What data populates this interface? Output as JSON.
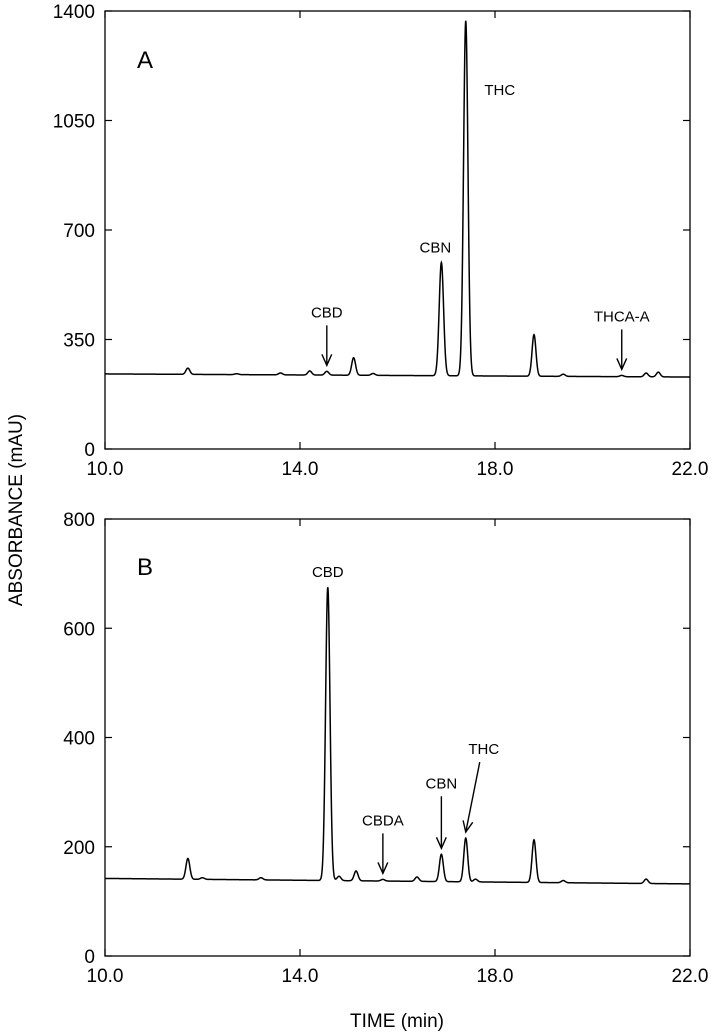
{
  "figure": {
    "ylabel": "ABSORBANCE (mAU)",
    "xlabel": "TIME (min)"
  },
  "chart_data": [
    {
      "type": "line",
      "panel_label": "A",
      "xlim": [
        10.0,
        22.0
      ],
      "ylim": [
        0,
        1400
      ],
      "x_ticks": [
        10.0,
        14.0,
        18.0,
        22.0
      ],
      "x_tick_labels": [
        "10.0",
        "14.0",
        "18.0",
        "22.0"
      ],
      "y_ticks": [
        0,
        350,
        700,
        1050,
        1400
      ],
      "y_tick_labels": [
        "0",
        "350",
        "700",
        "1050",
        "1400"
      ],
      "baseline": {
        "start": 240,
        "end": 230
      },
      "peaks": [
        {
          "rt": 11.7,
          "height": 20
        },
        {
          "rt": 12.7,
          "height": 3
        },
        {
          "rt": 13.6,
          "height": 6
        },
        {
          "rt": 14.2,
          "height": 13
        },
        {
          "rt": 14.55,
          "height": 12
        },
        {
          "rt": 15.1,
          "height": 56
        },
        {
          "rt": 15.5,
          "height": 6
        },
        {
          "rt": 16.9,
          "height": 362
        },
        {
          "rt": 17.4,
          "height": 1135
        },
        {
          "rt": 18.8,
          "height": 133
        },
        {
          "rt": 19.4,
          "height": 7
        },
        {
          "rt": 20.6,
          "height": 4
        },
        {
          "rt": 21.1,
          "height": 12
        },
        {
          "rt": 21.35,
          "height": 15
        }
      ],
      "annotations": [
        {
          "label": "CBD",
          "x": 14.55,
          "arrow": true
        },
        {
          "label": "CBN",
          "x": 16.9,
          "arrow": false
        },
        {
          "label": "THC",
          "x": 17.4,
          "arrow": false
        },
        {
          "label": "THCA-A",
          "x": 20.6,
          "arrow": true
        }
      ]
    },
    {
      "type": "line",
      "panel_label": "B",
      "xlim": [
        10.0,
        22.0
      ],
      "ylim": [
        0,
        800
      ],
      "x_ticks": [
        10.0,
        14.0,
        18.0,
        22.0
      ],
      "x_tick_labels": [
        "10.0",
        "14.0",
        "18.0",
        "22.0"
      ],
      "y_ticks": [
        0,
        200,
        400,
        600,
        800
      ],
      "y_tick_labels": [
        "0",
        "200",
        "400",
        "600",
        "800"
      ],
      "baseline": {
        "start": 142,
        "end": 132
      },
      "peaks": [
        {
          "rt": 11.7,
          "height": 38
        },
        {
          "rt": 12.0,
          "height": 3
        },
        {
          "rt": 13.2,
          "height": 4
        },
        {
          "rt": 14.57,
          "height": 537
        },
        {
          "rt": 14.8,
          "height": 8
        },
        {
          "rt": 15.15,
          "height": 18
        },
        {
          "rt": 15.7,
          "height": 3
        },
        {
          "rt": 16.4,
          "height": 8
        },
        {
          "rt": 16.9,
          "height": 50
        },
        {
          "rt": 17.4,
          "height": 80
        },
        {
          "rt": 17.6,
          "height": 5
        },
        {
          "rt": 18.8,
          "height": 78
        },
        {
          "rt": 19.4,
          "height": 4
        },
        {
          "rt": 21.1,
          "height": 8
        }
      ],
      "annotations": [
        {
          "label": "CBD",
          "x": 14.57,
          "arrow": false
        },
        {
          "label": "CBDA",
          "x": 15.7,
          "arrow": true
        },
        {
          "label": "CBN",
          "x": 16.9,
          "arrow": true
        },
        {
          "label": "THC",
          "x": 17.4,
          "arrow": true
        }
      ]
    }
  ]
}
